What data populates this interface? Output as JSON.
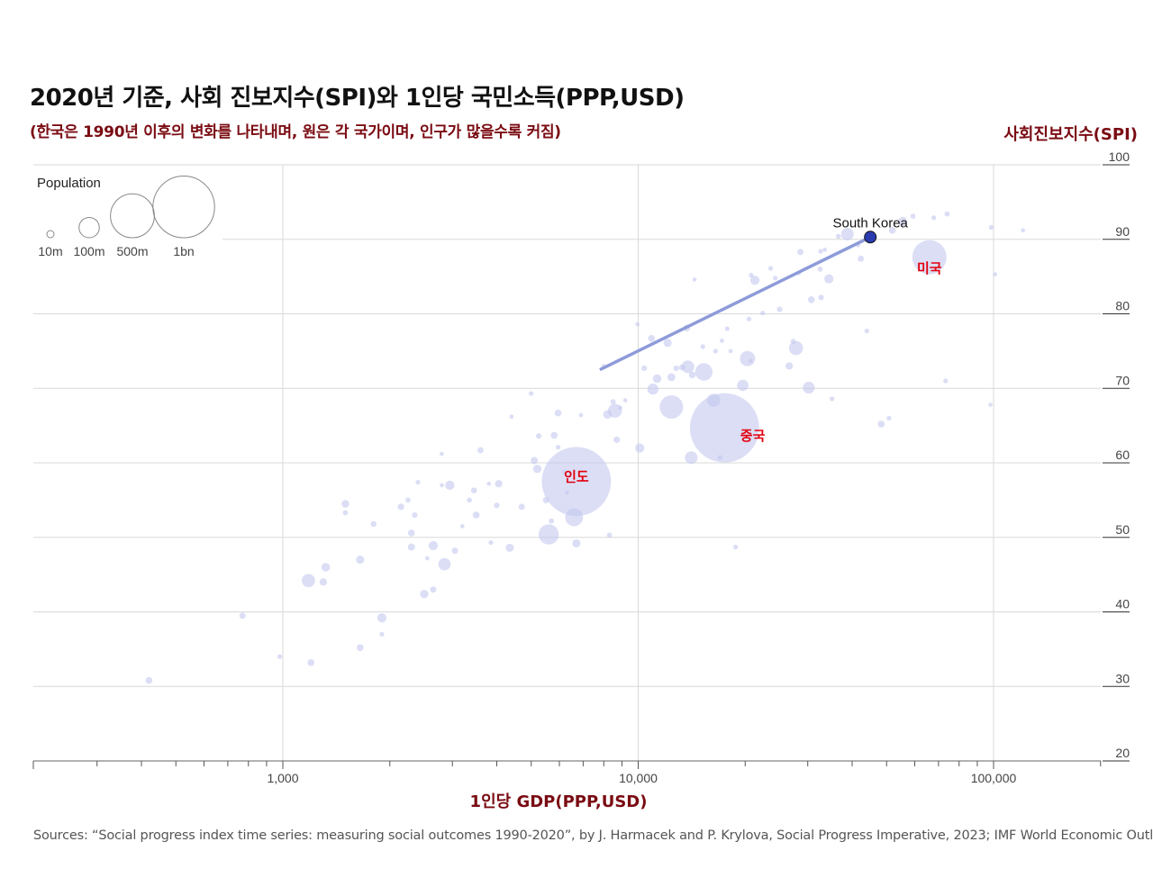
{
  "chart_data": {
    "type": "scatter",
    "title": "2020년 기준, 사회 진보지수(SPI)와 1인당 국민소득(PPP,USD)",
    "subtitle": "(한국은 1990년 이후의 변화를 나타내며, 원은 각 국가이며, 인구가 많을수록 커짐)",
    "xlabel": "1인당 GDP(PPP,USD)",
    "ylabel": "사회진보지수(SPI)",
    "x_scale": "log",
    "xlim": [
      220,
      200000
    ],
    "ylim": [
      20,
      100
    ],
    "x_ticks": [
      1000,
      10000,
      100000
    ],
    "x_tick_labels": [
      "1,000",
      "10,000",
      "100,000"
    ],
    "y_ticks": [
      20,
      30,
      40,
      50,
      60,
      70,
      80,
      90,
      100
    ],
    "y_tick_labels": [
      "20",
      "30",
      "40",
      "50",
      "60",
      "70",
      "80",
      "90",
      "100"
    ],
    "source": "Sources: “Social progress index time series: measuring social outcomes 1990-2020”, by J. Harmacek and P. Krylova, Social Progress Imperative, 2023; IMF World Economic Outlook",
    "legend": {
      "title": "Population",
      "items": [
        {
          "label": "10m",
          "pop_m": 10
        },
        {
          "label": "100m",
          "pop_m": 100
        },
        {
          "label": "500m",
          "pop_m": 500
        },
        {
          "label": "1bn",
          "pop_m": 1000
        }
      ]
    },
    "korea_trajectory": {
      "label": "South Korea",
      "start": {
        "x": 7800,
        "y": 72.5
      },
      "end": {
        "x": 45000,
        "y": 90.3
      }
    },
    "annotations": [
      {
        "name": "usa",
        "label": "미국",
        "x": 66000,
        "y": 85.5
      },
      {
        "name": "china",
        "label": "중국",
        "x": 21000,
        "y": 63
      },
      {
        "name": "india",
        "label": "인도",
        "x": 6700,
        "y": 57.5
      }
    ],
    "countries": [
      {
        "x": 420,
        "y": 30.8,
        "pop": 10
      },
      {
        "x": 770,
        "y": 39.5,
        "pop": 8
      },
      {
        "x": 980,
        "y": 34.0,
        "pop": 4
      },
      {
        "x": 1200,
        "y": 33.2,
        "pop": 10
      },
      {
        "x": 1180,
        "y": 44.2,
        "pop": 45
      },
      {
        "x": 1300,
        "y": 44.0,
        "pop": 12
      },
      {
        "x": 1320,
        "y": 46.0,
        "pop": 17
      },
      {
        "x": 1500,
        "y": 54.5,
        "pop": 13
      },
      {
        "x": 1500,
        "y": 53.3,
        "pop": 5
      },
      {
        "x": 1650,
        "y": 47.0,
        "pop": 15
      },
      {
        "x": 1650,
        "y": 35.2,
        "pop": 10
      },
      {
        "x": 1800,
        "y": 51.8,
        "pop": 7
      },
      {
        "x": 1900,
        "y": 39.2,
        "pop": 20
      },
      {
        "x": 1900,
        "y": 37.0,
        "pop": 4
      },
      {
        "x": 2150,
        "y": 54.1,
        "pop": 9
      },
      {
        "x": 2250,
        "y": 55.0,
        "pop": 5
      },
      {
        "x": 2300,
        "y": 50.6,
        "pop": 10
      },
      {
        "x": 2300,
        "y": 48.7,
        "pop": 11
      },
      {
        "x": 2350,
        "y": 53.0,
        "pop": 6
      },
      {
        "x": 2400,
        "y": 57.4,
        "pop": 4
      },
      {
        "x": 2500,
        "y": 42.4,
        "pop": 16
      },
      {
        "x": 2550,
        "y": 47.2,
        "pop": 3
      },
      {
        "x": 2650,
        "y": 48.9,
        "pop": 20
      },
      {
        "x": 2650,
        "y": 43.0,
        "pop": 8
      },
      {
        "x": 2800,
        "y": 61.2,
        "pop": 3
      },
      {
        "x": 2800,
        "y": 57.0,
        "pop": 3
      },
      {
        "x": 2850,
        "y": 46.4,
        "pop": 38
      },
      {
        "x": 2950,
        "y": 57.0,
        "pop": 20
      },
      {
        "x": 3050,
        "y": 48.2,
        "pop": 8
      },
      {
        "x": 3200,
        "y": 51.5,
        "pop": 3
      },
      {
        "x": 3350,
        "y": 55.0,
        "pop": 5
      },
      {
        "x": 3450,
        "y": 56.3,
        "pop": 7
      },
      {
        "x": 3500,
        "y": 53.0,
        "pop": 10
      },
      {
        "x": 3600,
        "y": 61.7,
        "pop": 8
      },
      {
        "x": 3800,
        "y": 57.2,
        "pop": 3
      },
      {
        "x": 3850,
        "y": 49.3,
        "pop": 4
      },
      {
        "x": 4000,
        "y": 54.3,
        "pop": 6
      },
      {
        "x": 4050,
        "y": 57.2,
        "pop": 12
      },
      {
        "x": 4350,
        "y": 48.6,
        "pop": 15
      },
      {
        "x": 4400,
        "y": 66.2,
        "pop": 3
      },
      {
        "x": 4700,
        "y": 54.1,
        "pop": 8
      },
      {
        "x": 5000,
        "y": 69.3,
        "pop": 4
      },
      {
        "x": 5100,
        "y": 60.3,
        "pop": 12
      },
      {
        "x": 5200,
        "y": 59.2,
        "pop": 16
      },
      {
        "x": 5250,
        "y": 63.6,
        "pop": 6
      },
      {
        "x": 5500,
        "y": 55.0,
        "pop": 8
      },
      {
        "x": 5600,
        "y": 50.4,
        "pop": 110
      },
      {
        "x": 5700,
        "y": 52.2,
        "pop": 5
      },
      {
        "x": 5800,
        "y": 63.7,
        "pop": 10
      },
      {
        "x": 5950,
        "y": 66.7,
        "pop": 10
      },
      {
        "x": 5950,
        "y": 62.1,
        "pop": 4
      },
      {
        "x": 6200,
        "y": 58.8,
        "pop": 4
      },
      {
        "x": 6300,
        "y": 56.0,
        "pop": 3
      },
      {
        "x": 6700,
        "y": 57.5,
        "pop": 1390
      },
      {
        "x": 6600,
        "y": 52.7,
        "pop": 85
      },
      {
        "x": 6700,
        "y": 49.2,
        "pop": 15
      },
      {
        "x": 6900,
        "y": 66.4,
        "pop": 3
      },
      {
        "x": 8000,
        "y": 73.0,
        "pop": 3
      },
      {
        "x": 8200,
        "y": 66.5,
        "pop": 17
      },
      {
        "x": 8300,
        "y": 50.3,
        "pop": 5
      },
      {
        "x": 8600,
        "y": 67.0,
        "pop": 50
      },
      {
        "x": 8500,
        "y": 68.2,
        "pop": 5
      },
      {
        "x": 8700,
        "y": 63.1,
        "pop": 9
      },
      {
        "x": 8900,
        "y": 67.4,
        "pop": 3
      },
      {
        "x": 9200,
        "y": 68.4,
        "pop": 3
      },
      {
        "x": 9950,
        "y": 78.6,
        "pop": 3
      },
      {
        "x": 10100,
        "y": 62.0,
        "pop": 20
      },
      {
        "x": 10400,
        "y": 72.7,
        "pop": 6
      },
      {
        "x": 10900,
        "y": 76.7,
        "pop": 10
      },
      {
        "x": 11000,
        "y": 69.9,
        "pop": 30
      },
      {
        "x": 11300,
        "y": 71.3,
        "pop": 17
      },
      {
        "x": 12100,
        "y": 76.1,
        "pop": 15
      },
      {
        "x": 12400,
        "y": 71.5,
        "pop": 14
      },
      {
        "x": 12400,
        "y": 67.5,
        "pop": 150
      },
      {
        "x": 12800,
        "y": 72.7,
        "pop": 6
      },
      {
        "x": 13300,
        "y": 72.8,
        "pop": 8
      },
      {
        "x": 13700,
        "y": 78.1,
        "pop": 10
      },
      {
        "x": 13800,
        "y": 72.9,
        "pop": 40
      },
      {
        "x": 14100,
        "y": 60.7,
        "pop": 40
      },
      {
        "x": 14200,
        "y": 71.8,
        "pop": 10
      },
      {
        "x": 14400,
        "y": 84.6,
        "pop": 3
      },
      {
        "x": 15300,
        "y": 72.2,
        "pop": 80
      },
      {
        "x": 15200,
        "y": 75.6,
        "pop": 4
      },
      {
        "x": 16300,
        "y": 68.4,
        "pop": 45
      },
      {
        "x": 16500,
        "y": 75.0,
        "pop": 4
      },
      {
        "x": 17200,
        "y": 76.4,
        "pop": 3
      },
      {
        "x": 17500,
        "y": 64.7,
        "pop": 1400
      },
      {
        "x": 17000,
        "y": 60.7,
        "pop": 5
      },
      {
        "x": 17800,
        "y": 78.0,
        "pop": 4
      },
      {
        "x": 18200,
        "y": 75.0,
        "pop": 3
      },
      {
        "x": 19700,
        "y": 70.4,
        "pop": 32
      },
      {
        "x": 18800,
        "y": 48.7,
        "pop": 4
      },
      {
        "x": 20300,
        "y": 74.0,
        "pop": 60
      },
      {
        "x": 20500,
        "y": 79.3,
        "pop": 4
      },
      {
        "x": 20700,
        "y": 73.7,
        "pop": 3
      },
      {
        "x": 20800,
        "y": 85.2,
        "pop": 4
      },
      {
        "x": 21300,
        "y": 84.5,
        "pop": 20
      },
      {
        "x": 22400,
        "y": 80.1,
        "pop": 4
      },
      {
        "x": 23600,
        "y": 86.1,
        "pop": 4
      },
      {
        "x": 24300,
        "y": 84.8,
        "pop": 4
      },
      {
        "x": 25000,
        "y": 80.6,
        "pop": 6
      },
      {
        "x": 26600,
        "y": 73.0,
        "pop": 12
      },
      {
        "x": 27300,
        "y": 76.3,
        "pop": 5
      },
      {
        "x": 27800,
        "y": 75.4,
        "pop": 50
      },
      {
        "x": 28300,
        "y": 85.5,
        "pop": 4
      },
      {
        "x": 28600,
        "y": 88.3,
        "pop": 8
      },
      {
        "x": 30200,
        "y": 70.1,
        "pop": 35
      },
      {
        "x": 30700,
        "y": 81.9,
        "pop": 10
      },
      {
        "x": 32500,
        "y": 86.0,
        "pop": 5
      },
      {
        "x": 32600,
        "y": 88.4,
        "pop": 4
      },
      {
        "x": 32700,
        "y": 82.2,
        "pop": 6
      },
      {
        "x": 33500,
        "y": 88.6,
        "pop": 3
      },
      {
        "x": 34400,
        "y": 84.7,
        "pop": 20
      },
      {
        "x": 35100,
        "y": 68.6,
        "pop": 4
      },
      {
        "x": 36600,
        "y": 90.4,
        "pop": 5
      },
      {
        "x": 38800,
        "y": 90.7,
        "pop": 40
      },
      {
        "x": 41600,
        "y": 89.2,
        "pop": 3
      },
      {
        "x": 42300,
        "y": 87.4,
        "pop": 8
      },
      {
        "x": 44000,
        "y": 77.7,
        "pop": 4
      },
      {
        "x": 48300,
        "y": 65.2,
        "pop": 10
      },
      {
        "x": 50800,
        "y": 66.0,
        "pop": 4
      },
      {
        "x": 51900,
        "y": 91.2,
        "pop": 10
      },
      {
        "x": 55500,
        "y": 92.4,
        "pop": 20
      },
      {
        "x": 59300,
        "y": 93.1,
        "pop": 5
      },
      {
        "x": 66000,
        "y": 87.6,
        "pop": 330
      },
      {
        "x": 67900,
        "y": 92.9,
        "pop": 4
      },
      {
        "x": 73300,
        "y": 71.0,
        "pop": 4
      },
      {
        "x": 74000,
        "y": 93.4,
        "pop": 5
      },
      {
        "x": 98000,
        "y": 67.8,
        "pop": 3
      },
      {
        "x": 98500,
        "y": 91.6,
        "pop": 4
      },
      {
        "x": 101000,
        "y": 85.3,
        "pop": 3
      },
      {
        "x": 121000,
        "y": 91.2,
        "pop": 3
      }
    ]
  }
}
